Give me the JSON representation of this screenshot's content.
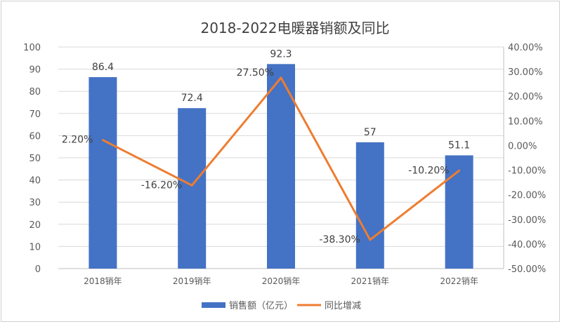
{
  "chart_data": {
    "type": "bar+line",
    "title": "2018-2022电暖器销额及同比",
    "categories": [
      "2018销年",
      "2019销年",
      "2020销年",
      "2021销年",
      "2022销年"
    ],
    "series": [
      {
        "name": "销售额（亿元）",
        "type": "bar",
        "axis": "left",
        "values": [
          86.4,
          72.4,
          92.3,
          57,
          51.1
        ],
        "labels": [
          "86.4",
          "72.4",
          "92.3",
          "57",
          "51.1"
        ],
        "color": "#4472C4"
      },
      {
        "name": "同比增减",
        "type": "line",
        "axis": "right",
        "values": [
          2.2,
          -16.2,
          27.5,
          -38.3,
          -10.2
        ],
        "labels": [
          "2.20%",
          "-16.20%",
          "27.50%",
          "-38.30%",
          "-10.20%"
        ],
        "color": "#ED7D31"
      }
    ],
    "left_axis": {
      "min": 0,
      "max": 100,
      "step": 10,
      "ticks": [
        "0",
        "10",
        "20",
        "30",
        "40",
        "50",
        "60",
        "70",
        "80",
        "90",
        "100"
      ]
    },
    "right_axis": {
      "min": -50,
      "max": 40,
      "step": 10,
      "ticks": [
        "-50.00%",
        "-40.00%",
        "-30.00%",
        "-20.00%",
        "-10.00%",
        "0.00%",
        "10.00%",
        "20.00%",
        "30.00%",
        "40.00%"
      ]
    },
    "grid": true,
    "legend": "bottom"
  }
}
